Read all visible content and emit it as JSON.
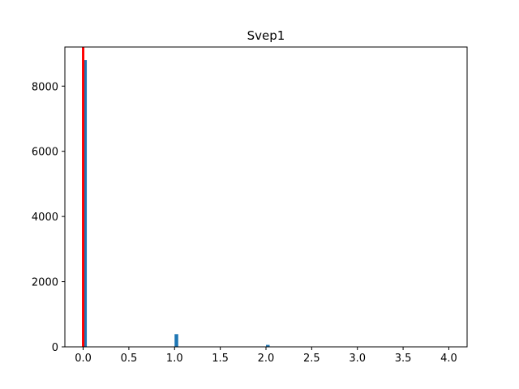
{
  "chart_data": {
    "type": "bar",
    "title": "Svep1",
    "xlabel": "",
    "ylabel": "",
    "xlim": [
      -0.2,
      4.2
    ],
    "ylim": [
      0,
      9200
    ],
    "x_ticks": [
      0.0,
      0.5,
      1.0,
      1.5,
      2.0,
      2.5,
      3.0,
      3.5,
      4.0
    ],
    "x_tick_labels": [
      "0.0",
      "0.5",
      "1.0",
      "1.5",
      "2.0",
      "2.5",
      "3.0",
      "3.5",
      "4.0"
    ],
    "y_ticks": [
      0,
      2000,
      4000,
      6000,
      8000
    ],
    "y_tick_labels": [
      "0",
      "2000",
      "4000",
      "6000",
      "8000"
    ],
    "bin_width": 0.04,
    "series": [
      {
        "name": "histogram",
        "color": "#1f77b4",
        "bins": [
          {
            "x": 0.0,
            "value": 8800
          },
          {
            "x": 1.0,
            "value": 390
          },
          {
            "x": 2.0,
            "value": 60
          }
        ]
      }
    ],
    "vlines": [
      {
        "x": 0.0,
        "color": "#ff0000"
      }
    ],
    "grid": false
  }
}
